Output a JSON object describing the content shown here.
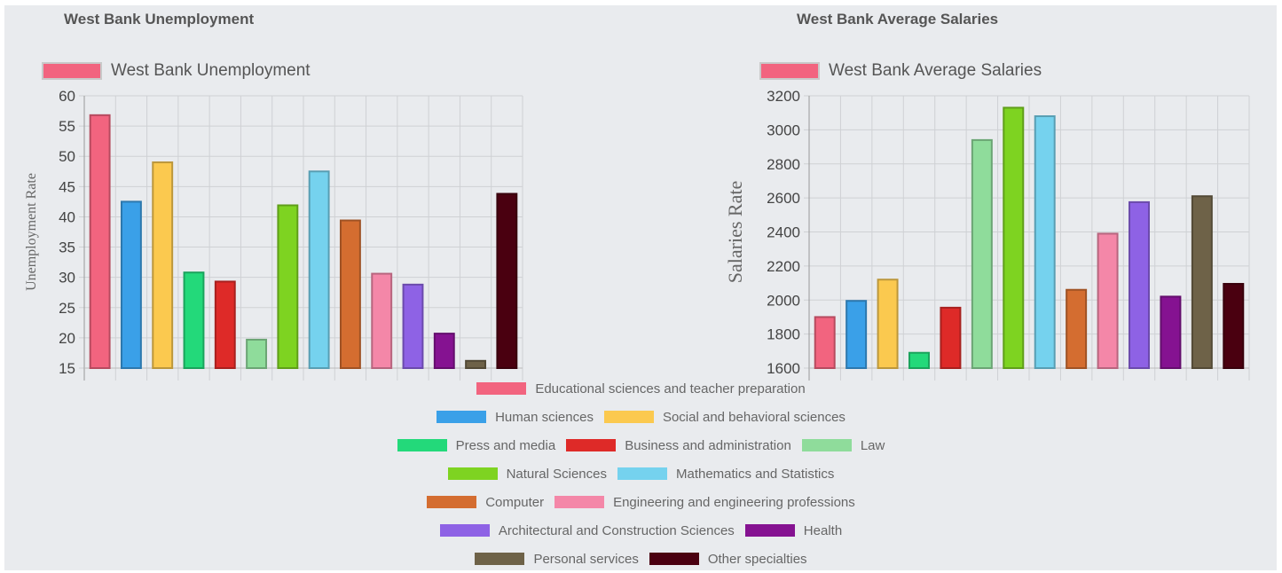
{
  "chart_data": [
    {
      "type": "bar",
      "title": "West Bank Unemployment",
      "series_label": "West Bank Unemployment",
      "ylabel": "Unemployment Rate",
      "xlabel": "",
      "ylim": [
        15,
        60
      ],
      "yticks": [
        15,
        20,
        25,
        30,
        35,
        40,
        45,
        50,
        55,
        60
      ],
      "grid": true,
      "legend_position": "top-left",
      "categories": [
        "Educational sciences and teacher preparation",
        "Human sciences",
        "Social and behavioral sciences",
        "Press and media",
        "Business and administration",
        "Law",
        "Natural Sciences",
        "Mathematics and Statistics",
        "Computer",
        "Engineering and engineering professions",
        "Architectural and Construction Sciences",
        "Health",
        "Personal services",
        "Other specialties"
      ],
      "values": [
        56.8,
        42.5,
        49,
        30.8,
        29.3,
        19.7,
        41.9,
        47.5,
        39.4,
        30.6,
        28.8,
        20.7,
        16.2,
        43.8
      ]
    },
    {
      "type": "bar",
      "title": "West Bank Average Salaries",
      "series_label": "West Bank Average Salaries",
      "ylabel": "Salaries Rate",
      "xlabel": "",
      "ylim": [
        1600,
        3200
      ],
      "yticks": [
        1600,
        1800,
        2000,
        2200,
        2400,
        2600,
        2800,
        3000,
        3200
      ],
      "grid": true,
      "legend_position": "top-left",
      "categories": [
        "Educational sciences and teacher preparation",
        "Human sciences",
        "Social and behavioral sciences",
        "Press and media",
        "Business and administration",
        "Law",
        "Natural Sciences",
        "Mathematics and Statistics",
        "Computer",
        "Engineering and engineering professions",
        "Architectural and Construction Sciences",
        "Health",
        "Personal services",
        "Other specialties"
      ],
      "values": [
        1900,
        1995,
        2120,
        1690,
        1955,
        2940,
        3130,
        3080,
        2060,
        2390,
        2575,
        2020,
        2610,
        2095
      ]
    }
  ],
  "legend": {
    "rows": [
      [
        0
      ],
      [
        1,
        2
      ],
      [
        3,
        4,
        5
      ],
      [
        6,
        7
      ],
      [
        8,
        9
      ],
      [
        10,
        11
      ],
      [
        12,
        13
      ]
    ],
    "items": [
      {
        "label": "Educational sciences and teacher preparation",
        "color": "#f2647f"
      },
      {
        "label": "Human sciences",
        "color": "#3aa0e8"
      },
      {
        "label": "Social and behavioral sciences",
        "color": "#fbc94f"
      },
      {
        "label": "Press and media",
        "color": "#23d97a"
      },
      {
        "label": "Business and administration",
        "color": "#de2a28"
      },
      {
        "label": "Law",
        "color": "#8fdc9b"
      },
      {
        "label": "Natural Sciences",
        "color": "#7ed321"
      },
      {
        "label": "Mathematics and Statistics",
        "color": "#75d2ee"
      },
      {
        "label": "Computer",
        "color": "#d46d30"
      },
      {
        "label": "Engineering and engineering professions",
        "color": "#f487a8"
      },
      {
        "label": "Architectural and Construction Sciences",
        "color": "#8e62e5"
      },
      {
        "label": "Health",
        "color": "#851291"
      },
      {
        "label": "Personal services",
        "color": "#6e6248"
      },
      {
        "label": "Other specialties",
        "color": "#4a0010"
      }
    ]
  },
  "series_color": "#f2647f"
}
